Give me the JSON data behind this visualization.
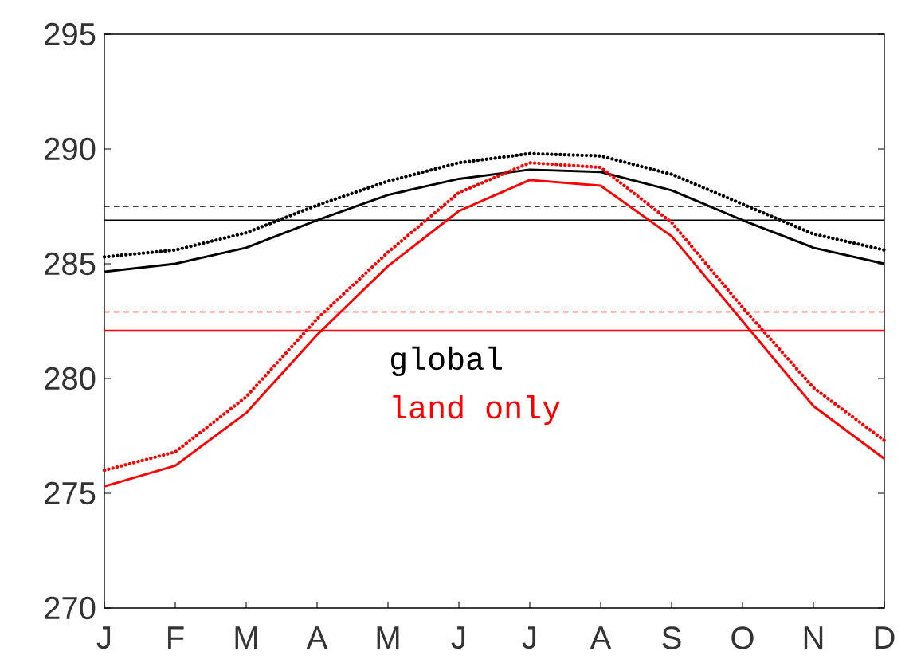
{
  "chart_data": {
    "type": "line",
    "categories": [
      "J",
      "F",
      "M",
      "A",
      "M",
      "J",
      "J",
      "A",
      "S",
      "O",
      "N",
      "D"
    ],
    "series": [
      {
        "name": "global",
        "color": "#000000",
        "line_style": "solid",
        "values": [
          284.65,
          285.0,
          285.7,
          286.9,
          288.0,
          288.7,
          289.1,
          289.0,
          288.2,
          286.9,
          285.7,
          285.0
        ]
      },
      {
        "color": "#000000",
        "line_style": "dotted",
        "values": [
          285.3,
          285.6,
          286.35,
          287.55,
          288.6,
          289.4,
          289.8,
          289.7,
          288.9,
          287.6,
          286.3,
          285.6
        ]
      },
      {
        "name": "land only",
        "color": "#ff0000",
        "line_style": "solid",
        "values": [
          275.3,
          276.2,
          278.5,
          281.9,
          284.9,
          287.3,
          288.65,
          288.4,
          286.2,
          282.5,
          278.8,
          276.5
        ]
      },
      {
        "color": "#ff0000",
        "line_style": "dotted",
        "values": [
          276.0,
          276.8,
          279.2,
          282.6,
          285.5,
          288.1,
          289.4,
          289.2,
          286.8,
          283.1,
          279.6,
          277.3
        ]
      }
    ],
    "ref_lines": [
      {
        "axis": "y",
        "value": 287.5,
        "color": "#000000",
        "line_style": "dashed"
      },
      {
        "axis": "y",
        "value": 286.9,
        "color": "#000000",
        "line_style": "solid"
      },
      {
        "axis": "y",
        "value": 282.9,
        "color": "#ff0000",
        "line_style": "dashed"
      },
      {
        "axis": "y",
        "value": 282.1,
        "color": "#ff0000",
        "line_style": "solid"
      }
    ],
    "ylim": [
      270,
      295
    ],
    "yticks": [
      270,
      275,
      280,
      285,
      290,
      295
    ],
    "grid": false,
    "marker": "none"
  }
}
